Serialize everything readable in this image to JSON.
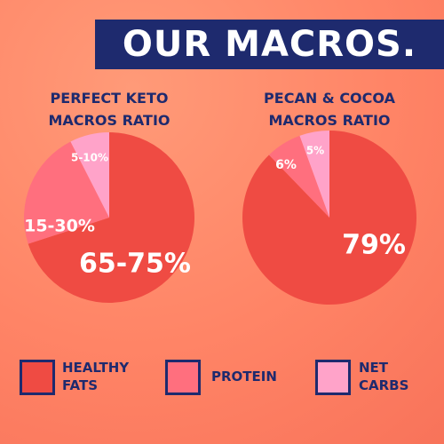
{
  "title": "OUR MACROS.",
  "legend": {
    "labels": [
      "HEALTHY FATS",
      "PROTEIN",
      "NET CARBS"
    ],
    "colors": [
      "#ef4b43",
      "#ff6f7e",
      "#ffa3c9"
    ]
  },
  "chart_data": [
    {
      "type": "pie",
      "title": "PERFECT KETO MACROS RATIO",
      "values": [
        70,
        22.5,
        7.5
      ],
      "value_labels": [
        "65-75%",
        "15-30%",
        "5-10%"
      ]
    },
    {
      "type": "pie",
      "title": "PECAN & COCOA MACROS RATIO",
      "values": [
        79,
        6,
        5
      ],
      "value_labels": [
        "79%",
        "6%",
        "5%"
      ]
    }
  ]
}
